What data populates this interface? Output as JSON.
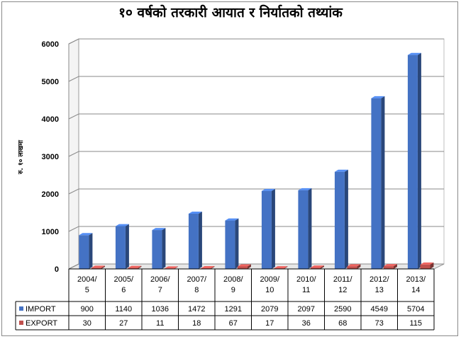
{
  "chart_data": {
    "type": "bar",
    "title": "१० वर्षको तरकारी आयात र निर्यातको तथ्यांक",
    "ylabel": "रु. १० लाखमा",
    "xlabel": "",
    "ylim": [
      0,
      6000
    ],
    "yticks": [
      0,
      1000,
      2000,
      3000,
      4000,
      5000,
      6000
    ],
    "categories": [
      [
        "2004/",
        "5"
      ],
      [
        "2005/",
        "6"
      ],
      [
        "2006/",
        "7"
      ],
      [
        "2007/",
        "8"
      ],
      [
        "2008/",
        "9"
      ],
      [
        "2009/",
        "10"
      ],
      [
        "2010/",
        "11"
      ],
      [
        "2011/",
        "12"
      ],
      [
        "2012/",
        "13"
      ],
      [
        "2013/",
        "14"
      ]
    ],
    "series": [
      {
        "name": "IMPORT",
        "color": "#4472C4",
        "values": [
          900,
          1140,
          1036,
          1472,
          1291,
          2079,
          2097,
          2590,
          4549,
          5704
        ]
      },
      {
        "name": "EXPORT",
        "color": "#C0504D",
        "values": [
          30,
          27,
          11,
          18,
          67,
          17,
          36,
          68,
          73,
          115
        ]
      }
    ],
    "grid": true,
    "legend": "data-table-below",
    "style": "3d-column"
  }
}
